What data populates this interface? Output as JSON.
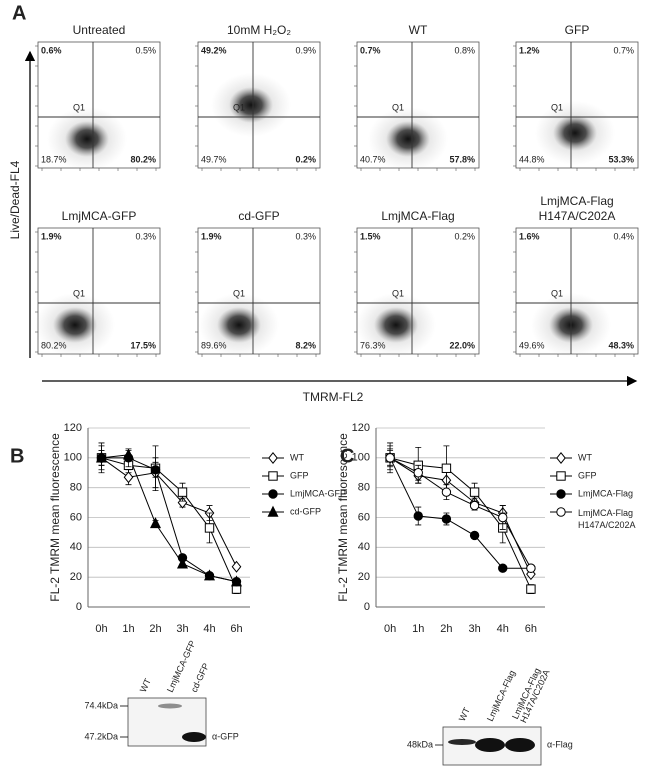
{
  "panel_labels": [
    "A",
    "B",
    "C"
  ],
  "flow": {
    "y_label": "Live/Dead-FL4",
    "x_label": "TMRM-FL2",
    "gate": "Q1",
    "plots": [
      {
        "title": "Untreated",
        "q_tl": "0.6%",
        "q_tr": "0.5%",
        "q_bl": "18.7%",
        "q_br": "80.2%"
      },
      {
        "title": "10mM H₂O₂",
        "q_tl": "49.2%",
        "q_tr": "0.9%",
        "q_bl": "49.7%",
        "q_br": "0.2%"
      },
      {
        "title": "WT",
        "q_tl": "0.7%",
        "q_tr": "0.8%",
        "q_bl": "40.7%",
        "q_br": "57.8%"
      },
      {
        "title": "GFP",
        "q_tl": "1.2%",
        "q_tr": "0.7%",
        "q_bl": "44.8%",
        "q_br": "53.3%"
      },
      {
        "title": "LmjMCA-GFP",
        "q_tl": "1.9%",
        "q_tr": "0.3%",
        "q_bl": "80.2%",
        "q_br": "17.5%"
      },
      {
        "title": "cd-GFP",
        "q_tl": "1.9%",
        "q_tr": "0.3%",
        "q_bl": "89.6%",
        "q_br": "8.2%"
      },
      {
        "title": "LmjMCA-Flag",
        "q_tl": "1.5%",
        "q_tr": "0.2%",
        "q_bl": "76.3%",
        "q_br": "22.0%"
      },
      {
        "title": "LmjMCA-Flag H147A/C202A",
        "q_tl": "1.6%",
        "q_tr": "0.4%",
        "q_bl": "49.6%",
        "q_br": "48.3%"
      }
    ]
  },
  "chart_data": [
    {
      "type": "line",
      "y_label": "FL-2 TMRM mean fluorescence",
      "categories": [
        "0h",
        "1h",
        "2h",
        "3h",
        "4h",
        "6h"
      ],
      "ylim": [
        0,
        120
      ],
      "yticks": [
        0,
        20,
        40,
        60,
        80,
        100,
        120
      ],
      "grid": true,
      "series": [
        {
          "name": "WT",
          "color": "#000000",
          "marker": "diamond-open",
          "values": [
            100,
            87,
            90,
            70,
            63,
            27
          ],
          "errors": [
            10,
            5,
            10,
            3,
            5,
            1
          ]
        },
        {
          "name": "GFP",
          "color": "#000000",
          "marker": "square-open",
          "values": [
            100,
            95,
            93,
            77,
            53,
            12
          ],
          "errors": [
            5,
            5,
            15,
            6,
            10,
            3
          ]
        },
        {
          "name": "LmjMCA-GFP",
          "color": "#000000",
          "marker": "circle-filled",
          "values": [
            100,
            100,
            92,
            33,
            21,
            17
          ],
          "errors": [
            8,
            6,
            5,
            2,
            1,
            1
          ]
        },
        {
          "name": "cd-GFP",
          "color": "#000000",
          "marker": "triangle-filled",
          "values": [
            100,
            102,
            56,
            29,
            21,
            17
          ],
          "errors": [
            5,
            3,
            2,
            2,
            1,
            1
          ]
        }
      ]
    },
    {
      "type": "line",
      "y_label": "FL-2 TMRM mean fluorescence",
      "categories": [
        "0h",
        "1h",
        "2h",
        "3h",
        "4h",
        "6h"
      ],
      "ylim": [
        0,
        120
      ],
      "yticks": [
        0,
        20,
        40,
        60,
        80,
        100,
        120
      ],
      "grid": true,
      "series": [
        {
          "name": "WT",
          "color": "#000000",
          "marker": "diamond-open",
          "values": [
            100,
            88,
            85,
            70,
            63,
            22
          ],
          "errors": [
            10,
            5,
            10,
            3,
            5,
            1
          ]
        },
        {
          "name": "GFP",
          "color": "#000000",
          "marker": "square-open",
          "values": [
            100,
            95,
            93,
            77,
            53,
            12
          ],
          "errors": [
            5,
            12,
            15,
            6,
            10,
            3
          ]
        },
        {
          "name": "LmjMCA-Flag",
          "color": "#000000",
          "marker": "circle-filled",
          "values": [
            100,
            61,
            59,
            48,
            26,
            26
          ],
          "errors": [
            8,
            6,
            4,
            2,
            1,
            1
          ]
        },
        {
          "name": "LmjMCA-Flag H147A/C202A",
          "color": "#000000",
          "marker": "circle-open",
          "values": [
            100,
            90,
            77,
            68,
            60,
            26
          ],
          "errors": [
            6,
            5,
            5,
            3,
            8,
            2
          ]
        }
      ]
    }
  ],
  "blots": [
    {
      "lanes": [
        "WT",
        "LmjMCA-GFP",
        "cd-GFP"
      ],
      "markers": [
        "74.4kDa",
        "47.2kDa"
      ],
      "antibody": "α-GFP"
    },
    {
      "lanes": [
        "WT",
        "LmjMCA-Flag",
        "LmjMCA-Flag H147A/C202A"
      ],
      "markers": [
        "48kDa"
      ],
      "antibody": "α-Flag"
    }
  ]
}
